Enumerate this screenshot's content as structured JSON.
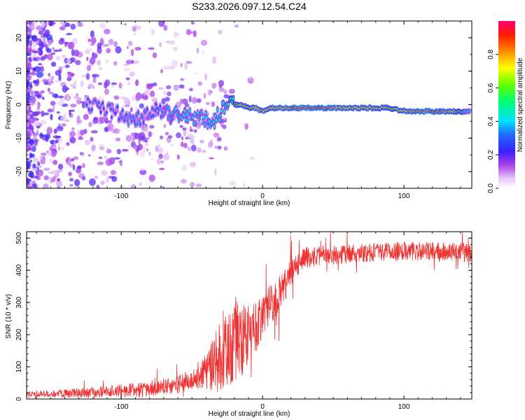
{
  "title": "S233.2026.097.12.54.C24",
  "chart_data": [
    {
      "type": "heatmap",
      "name": "spectrogram",
      "xlabel": "Height of straight line (km)",
      "ylabel": "Frequency (Hz)",
      "xlim": [
        -167,
        148
      ],
      "ylim": [
        -25,
        25
      ],
      "xticks": [
        -100,
        0,
        100
      ],
      "xtick_labels": [
        "-100",
        "0",
        "100"
      ],
      "yticks": [
        -20,
        -10,
        0,
        10,
        20
      ],
      "ytick_labels": [
        "-20",
        "-10",
        "0",
        "10",
        "20"
      ],
      "ridge": {
        "x": [
          -125,
          -115,
          -105,
          -95,
          -85,
          -75,
          -65,
          -55,
          -45,
          -35,
          -25,
          -20,
          -15,
          -10,
          -5,
          0,
          5,
          10,
          20,
          40,
          60,
          80,
          90,
          100,
          110,
          120,
          130,
          140,
          147
        ],
        "freq_hz": [
          0,
          -1,
          -2,
          -4,
          -4,
          -1,
          -3,
          -3,
          -4,
          -5,
          0,
          0,
          0,
          -1,
          -1,
          -2,
          -1,
          -1,
          -1,
          -1,
          -1,
          -1,
          -1,
          -2,
          -2,
          -2,
          -2,
          -2,
          -2
        ],
        "amplitude": [
          0.3,
          0.3,
          0.3,
          0.35,
          0.35,
          0.3,
          0.4,
          0.45,
          0.4,
          0.45,
          0.5,
          0.6,
          0.8,
          0.7,
          0.8,
          0.85,
          0.7,
          0.85,
          0.9,
          0.95,
          0.8,
          0.75,
          0.7,
          0.8,
          0.9,
          0.95,
          0.85,
          0.6,
          0.4
        ]
      },
      "colorbar": {
        "label": "Normalized spectral amplitude",
        "range": [
          0,
          1
        ],
        "ticks": [
          0.0,
          0.2,
          0.4,
          0.6,
          0.8
        ],
        "tick_labels": [
          "0.0",
          "0.2",
          "0.4",
          "0.6",
          "0.8"
        ]
      }
    },
    {
      "type": "line",
      "name": "snr",
      "xlabel": "Height of straight line (km)",
      "ylabel": "SNR (10 * v/v)",
      "xlim": [
        -167,
        148
      ],
      "ylim": [
        0,
        520
      ],
      "xticks": [
        -100,
        0,
        100
      ],
      "xtick_labels": [
        "-100",
        "0",
        "100"
      ],
      "yticks": [
        0,
        100,
        200,
        300,
        400,
        500
      ],
      "ytick_labels": [
        "0",
        "100",
        "200",
        "300",
        "400",
        "500"
      ],
      "color": "#ee3333",
      "trend": {
        "x": [
          -167,
          -120,
          -100,
          -80,
          -60,
          -50,
          -40,
          -30,
          -25,
          -20,
          -15,
          -10,
          -5,
          0,
          5,
          10,
          15,
          20,
          25,
          30,
          40,
          60,
          80,
          100,
          120,
          148
        ],
        "y": [
          15,
          20,
          25,
          30,
          45,
          60,
          90,
          140,
          170,
          190,
          180,
          200,
          220,
          250,
          290,
          320,
          350,
          390,
          420,
          440,
          445,
          450,
          455,
          460,
          458,
          455
        ]
      },
      "noise_amplitude": {
        "x": [
          -167,
          -50,
          -40,
          -30,
          -20,
          -10,
          0,
          10,
          25,
          40,
          148
        ],
        "y": [
          8,
          30,
          60,
          120,
          140,
          90,
          70,
          60,
          35,
          30,
          30
        ]
      }
    }
  ]
}
